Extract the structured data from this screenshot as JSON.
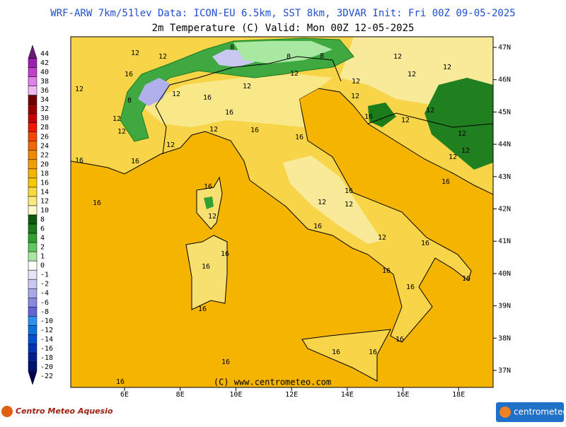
{
  "header": {
    "line1": "WRF-ARW 7km/51lev   Data: ICON-EU 6.5km, SST 8km, 3DVAR   Init: Fri 00Z 09-05-2025",
    "line2": "2m Temperature (C)  Valid: Mon 00Z 12-05-2025"
  },
  "colorbar": {
    "values": [
      44,
      42,
      40,
      38,
      36,
      34,
      32,
      30,
      28,
      26,
      24,
      22,
      20,
      18,
      16,
      14,
      12,
      10,
      8,
      6,
      4,
      2,
      1,
      0,
      -1,
      -2,
      -4,
      -6,
      -8,
      -10,
      -12,
      -14,
      -16,
      -18,
      -20,
      -22
    ],
    "colors": [
      "#6a1a7a",
      "#9a20b0",
      "#c040c8",
      "#e080e8",
      "#f0b8f0",
      "#700000",
      "#980000",
      "#c80000",
      "#f01800",
      "#f04800",
      "#f06800",
      "#f08800",
      "#f0a000",
      "#f4b400",
      "#f8c800",
      "#f8da40",
      "#f8ea80",
      "#fff8c8",
      "#0c5a0c",
      "#1c7c1c",
      "#30a030",
      "#60c860",
      "#a8e8a0",
      "#ffffff",
      "#e4e4f8",
      "#c8c8f0",
      "#a8a8e8",
      "#8888e0",
      "#6464d4",
      "#3090f0",
      "#1070e0",
      "#0050d0",
      "#0034b4",
      "#002090",
      "#001070",
      "#000050"
    ]
  },
  "map": {
    "lat_labels": [
      "47N",
      "46N",
      "45N",
      "44N",
      "43N",
      "42N",
      "41N",
      "40N",
      "39N",
      "38N",
      "37N"
    ],
    "lon_labels": [
      "6E",
      "8E",
      "10E",
      "12E",
      "14E",
      "16E",
      "18E"
    ],
    "contour_labels": [
      12,
      12,
      16,
      12,
      16,
      12,
      8,
      12,
      12,
      16,
      16,
      16,
      12,
      16,
      12,
      12,
      12,
      12,
      12,
      12,
      12,
      12,
      12,
      12,
      16,
      16,
      16,
      16,
      12,
      16,
      12,
      12,
      16,
      12,
      16,
      16,
      16,
      16,
      16,
      16,
      16,
      16,
      16,
      16,
      16,
      16,
      16,
      12,
      12,
      8,
      8,
      12,
      8
    ],
    "copyright": "(C) www.centrometeo.com"
  },
  "footer": {
    "left_logo": "Centro Meteo Aquesio",
    "right_logo": "centrometeo"
  }
}
